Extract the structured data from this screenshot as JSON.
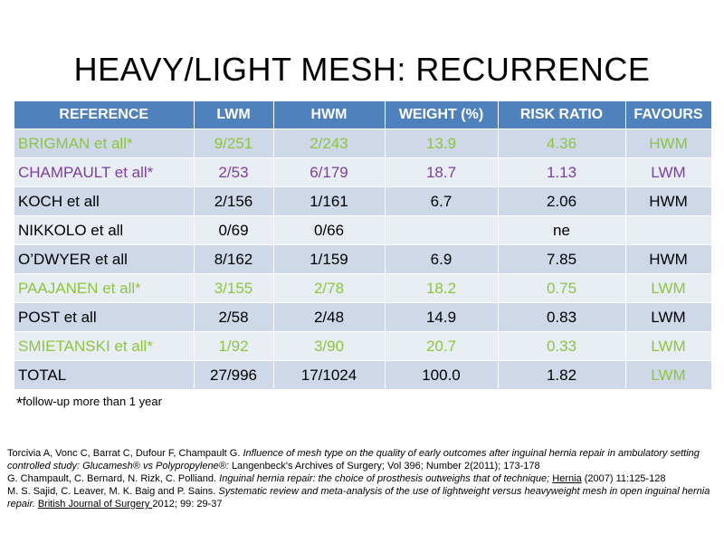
{
  "title": "HEAVY/LIGHT MESH: RECURRENCE",
  "table": {
    "headers": [
      "REFERENCE",
      "LWM",
      "HWM",
      "WEIGHT (%)",
      "RISK RATIO",
      "FAVOURS"
    ],
    "rows": [
      {
        "reference": "BRIGMAN et all*",
        "lwm": "9/251",
        "hwm": "2/243",
        "weight": "13.9",
        "risk_ratio": "4.36",
        "favours": "HWM",
        "color": "#8cc63e"
      },
      {
        "reference": "CHAMPAULT et all*",
        "lwm": "2/53",
        "hwm": "6/179",
        "weight": "18.7",
        "risk_ratio": "1.13",
        "favours": "LWM",
        "color": "#7b3fa0"
      },
      {
        "reference": "KOCH et all",
        "lwm": "2/156",
        "hwm": "1/161",
        "weight": "6.7",
        "risk_ratio": "2.06",
        "favours": "HWM",
        "color": "#000000"
      },
      {
        "reference": "NIKKOLO et all",
        "lwm": "0/69",
        "hwm": "0/66",
        "weight": "",
        "risk_ratio": "ne",
        "favours": "",
        "color": "#000000"
      },
      {
        "reference": "O’DWYER et all",
        "lwm": "8/162",
        "hwm": "1/159",
        "weight": "6.9",
        "risk_ratio": "7.85",
        "favours": "HWM",
        "color": "#000000"
      },
      {
        "reference": "PAAJANEN et all*",
        "lwm": "3/155",
        "hwm": "2/78",
        "weight": "18.2",
        "risk_ratio": "0.75",
        "favours": "LWM",
        "color": "#8cc63e"
      },
      {
        "reference": "POST et all",
        "lwm": "2/58",
        "hwm": "2/48",
        "weight": "14.9",
        "risk_ratio": "0.83",
        "favours": "LWM",
        "color": "#000000"
      },
      {
        "reference": "SMIETANSKI et all*",
        "lwm": "1/92",
        "hwm": "3/90",
        "weight": "20.7",
        "risk_ratio": "0.33",
        "favours": "LWM",
        "color": "#8cc63e"
      },
      {
        "reference": "TOTAL",
        "lwm": "27/996",
        "hwm": "17/1024",
        "weight": "100.0",
        "risk_ratio": "1.82",
        "favours": "LWM",
        "color": "#000000",
        "favours_color": "#8cc63e"
      }
    ]
  },
  "footnote": {
    "star": "*",
    "text": "follow-up more  than 1 year"
  },
  "references": [
    {
      "authors": "Torcivia A, Vonc C, Barrat C, Dufour F, Champault G. ",
      "title": "Influence of mesh type on the quality of early outcomes after inguinal hernia repair in ambulatory setting controlled study: Glucamesh® vs Polypropylene®: ",
      "rest": "Langenbeck's Archives of Surgery; Vol 396; Number 2(2011); 173-178"
    },
    {
      "authors": "G. Champault, C. Bernard, N. Rizk, C. Polliand. ",
      "title": "Inguinal hernia repair:  the choice of prosthesis outweighs that of technique; ",
      "journal": "Hernia",
      "rest": " (2007) 11:125-128"
    },
    {
      "authors": "M. S. Sajid, C. Leaver, M. K. Baig and P. Sains. ",
      "title": "Systematic review and meta-analysis of the use of lightweight versus heavyweight mesh in open inguinal hernia repair. ",
      "journal": "British Journal of Surgery ",
      "rest": "2012; 99: 29-37"
    }
  ]
}
